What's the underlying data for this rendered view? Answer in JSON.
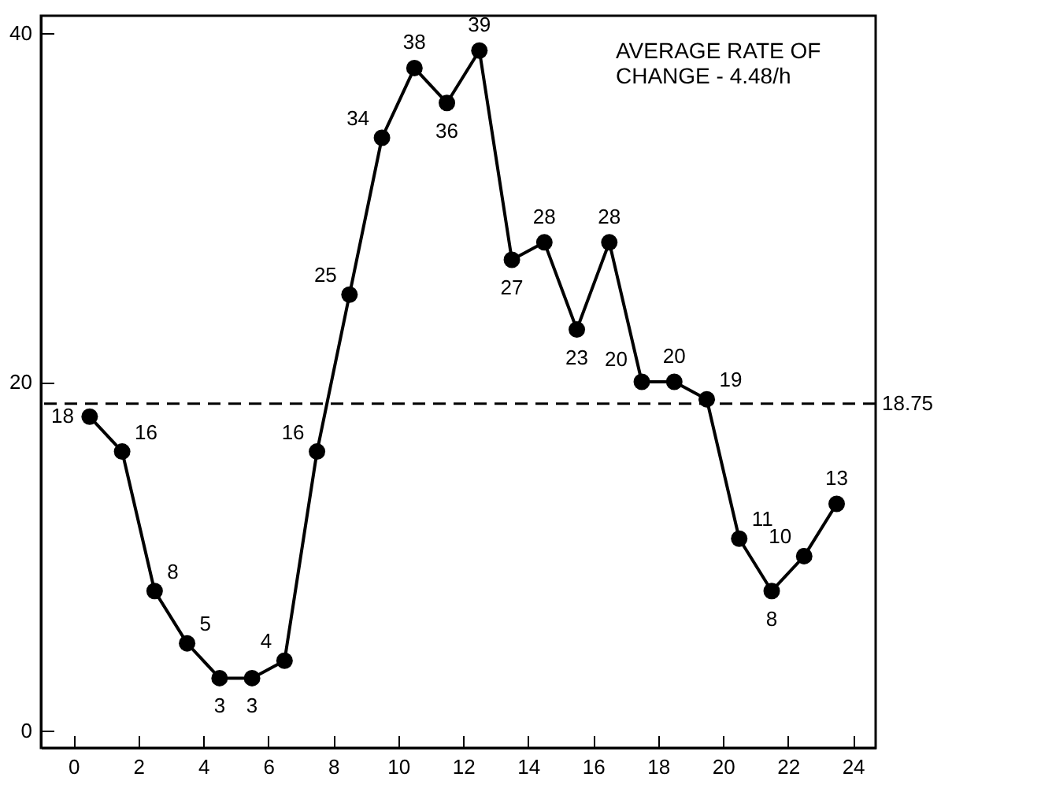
{
  "chart_data": {
    "type": "line",
    "x": [
      0.5,
      1.5,
      2.5,
      3.5,
      4.5,
      5.5,
      6.5,
      7.5,
      8.5,
      9.5,
      10.5,
      11.5,
      12.5,
      13.5,
      14.5,
      15.5,
      16.5,
      17.5,
      18.5,
      19.5,
      20.5,
      21.5,
      22.5,
      23.5
    ],
    "series": [
      {
        "color": "#000000",
        "values": [
          18,
          16,
          8,
          5,
          3,
          3,
          4,
          16,
          25,
          34,
          38,
          36,
          39,
          27,
          28,
          23,
          28,
          20,
          20,
          19,
          11,
          8,
          10,
          13
        ]
      }
    ],
    "data_labels": true,
    "grid": false,
    "marker": "circle",
    "line_style": "solid",
    "xlim": [
      -1,
      24.7
    ],
    "ylim": [
      -1,
      41
    ],
    "xticks": [
      0,
      2,
      4,
      6,
      8,
      10,
      12,
      14,
      16,
      18,
      20,
      22,
      24
    ],
    "yticks": [
      0,
      20,
      40
    ],
    "ref_lines": [
      {
        "axis": "y",
        "value": 18.75,
        "label": "18.75",
        "line_style": "dashed",
        "color": "#000000"
      }
    ],
    "annotations": [
      "AVERAGE RATE OF\nCHANGE - 4.48/h"
    ]
  }
}
